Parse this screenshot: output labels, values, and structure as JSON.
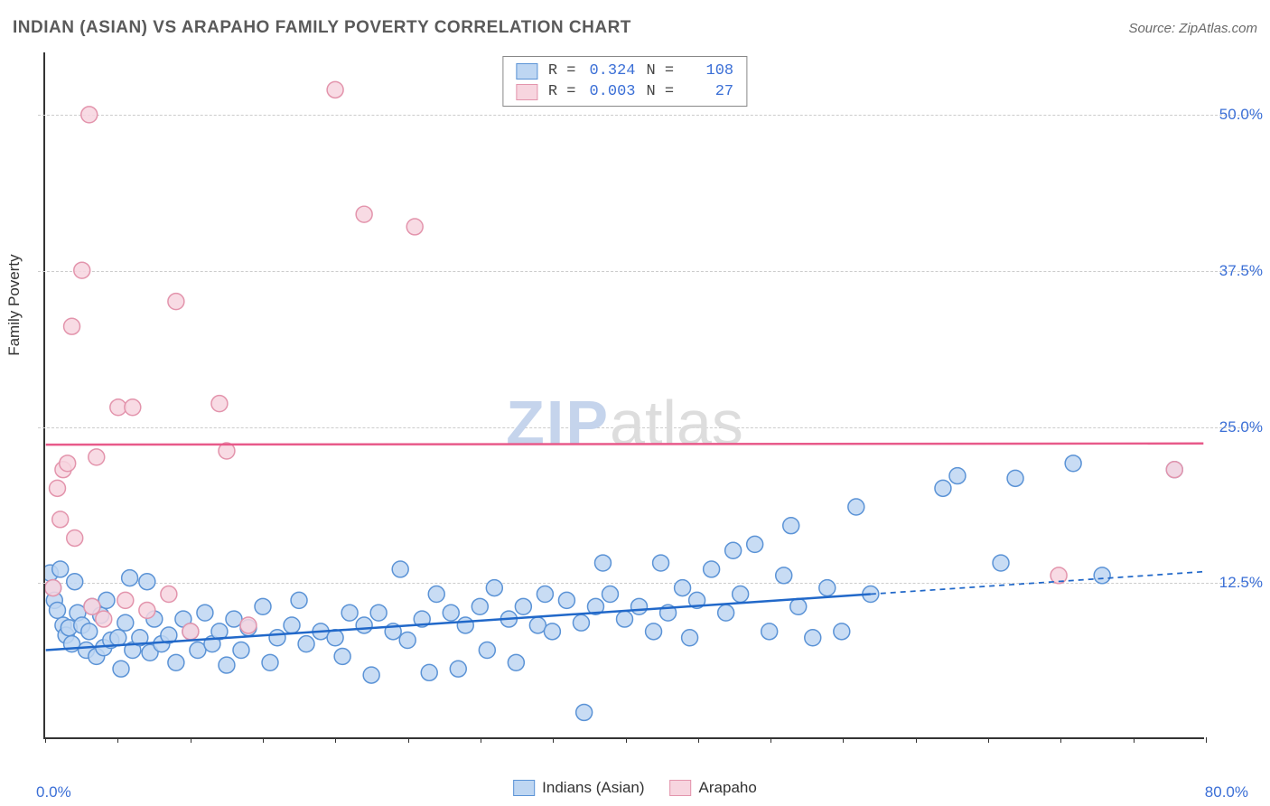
{
  "title": "INDIAN (ASIAN) VS ARAPAHO FAMILY POVERTY CORRELATION CHART",
  "source_label": "Source: ZipAtlas.com",
  "watermark": {
    "part1": "ZIP",
    "part2": "atlas"
  },
  "y_axis_title": "Family Poverty",
  "chart": {
    "type": "scatter-correlation",
    "background_color": "#ffffff",
    "grid_color": "#cccccc",
    "axis_color": "#333333",
    "label_color": "#3b6fd6",
    "xlim": [
      0,
      80
    ],
    "ylim": [
      0,
      55
    ],
    "x_min_label": "0.0%",
    "x_max_label": "80.0%",
    "x_ticks": [
      0,
      5,
      10,
      15,
      20,
      25,
      30,
      35,
      40,
      45,
      50,
      55,
      60,
      65,
      70,
      75,
      80
    ],
    "y_gridlines": [
      {
        "value": 12.5,
        "label": "12.5%"
      },
      {
        "value": 25.0,
        "label": "25.0%"
      },
      {
        "value": 37.5,
        "label": "37.5%"
      },
      {
        "value": 50.0,
        "label": "50.0%"
      }
    ],
    "series": [
      {
        "name": "Indians (Asian)",
        "key": "indians",
        "marker_fill": "#bed6f2",
        "marker_stroke": "#5b93d6",
        "marker_radius": 9,
        "line_color": "#2168c9",
        "line_width": 2.5,
        "R": "0.324",
        "N": "108",
        "regression": {
          "x1": 0,
          "y1": 7.0,
          "x2_solid": 57,
          "y2_solid": 11.5,
          "x2_dash": 80,
          "y2_dash": 13.3
        },
        "points": [
          [
            0.3,
            13.2
          ],
          [
            0.5,
            12.0
          ],
          [
            0.6,
            11.0
          ],
          [
            0.8,
            10.2
          ],
          [
            1.0,
            13.5
          ],
          [
            1.2,
            9.0
          ],
          [
            1.4,
            8.2
          ],
          [
            1.6,
            8.8
          ],
          [
            1.8,
            7.5
          ],
          [
            2.0,
            12.5
          ],
          [
            2.2,
            10.0
          ],
          [
            2.5,
            9.0
          ],
          [
            2.8,
            7.0
          ],
          [
            3.0,
            8.5
          ],
          [
            3.2,
            10.5
          ],
          [
            3.5,
            6.5
          ],
          [
            3.8,
            9.8
          ],
          [
            4.0,
            7.2
          ],
          [
            4.2,
            11.0
          ],
          [
            4.5,
            7.8
          ],
          [
            5.0,
            8.0
          ],
          [
            5.2,
            5.5
          ],
          [
            5.5,
            9.2
          ],
          [
            5.8,
            12.8
          ],
          [
            6.0,
            7.0
          ],
          [
            6.5,
            8.0
          ],
          [
            7.0,
            12.5
          ],
          [
            7.2,
            6.8
          ],
          [
            7.5,
            9.5
          ],
          [
            8.0,
            7.5
          ],
          [
            8.5,
            8.2
          ],
          [
            9.0,
            6.0
          ],
          [
            9.5,
            9.5
          ],
          [
            10.0,
            8.5
          ],
          [
            10.5,
            7.0
          ],
          [
            11.0,
            10.0
          ],
          [
            11.5,
            7.5
          ],
          [
            12.0,
            8.5
          ],
          [
            12.5,
            5.8
          ],
          [
            13.0,
            9.5
          ],
          [
            13.5,
            7.0
          ],
          [
            14.0,
            8.8
          ],
          [
            15.0,
            10.5
          ],
          [
            15.5,
            6.0
          ],
          [
            16.0,
            8.0
          ],
          [
            17.0,
            9.0
          ],
          [
            17.5,
            11.0
          ],
          [
            18.0,
            7.5
          ],
          [
            19.0,
            8.5
          ],
          [
            20.0,
            8.0
          ],
          [
            20.5,
            6.5
          ],
          [
            21.0,
            10.0
          ],
          [
            22.0,
            9.0
          ],
          [
            22.5,
            5.0
          ],
          [
            23.0,
            10.0
          ],
          [
            24.0,
            8.5
          ],
          [
            24.5,
            13.5
          ],
          [
            25.0,
            7.8
          ],
          [
            26.0,
            9.5
          ],
          [
            26.5,
            5.2
          ],
          [
            27.0,
            11.5
          ],
          [
            28.0,
            10.0
          ],
          [
            28.5,
            5.5
          ],
          [
            29.0,
            9.0
          ],
          [
            30.0,
            10.5
          ],
          [
            30.5,
            7.0
          ],
          [
            31.0,
            12.0
          ],
          [
            32.0,
            9.5
          ],
          [
            32.5,
            6.0
          ],
          [
            33.0,
            10.5
          ],
          [
            34.0,
            9.0
          ],
          [
            34.5,
            11.5
          ],
          [
            35.0,
            8.5
          ],
          [
            36.0,
            11.0
          ],
          [
            37.0,
            9.2
          ],
          [
            37.2,
            2.0
          ],
          [
            38.0,
            10.5
          ],
          [
            38.5,
            14.0
          ],
          [
            39.0,
            11.5
          ],
          [
            40.0,
            9.5
          ],
          [
            41.0,
            10.5
          ],
          [
            42.0,
            8.5
          ],
          [
            42.5,
            14.0
          ],
          [
            43.0,
            10.0
          ],
          [
            44.0,
            12.0
          ],
          [
            44.5,
            8.0
          ],
          [
            45.0,
            11.0
          ],
          [
            46.0,
            13.5
          ],
          [
            47.0,
            10.0
          ],
          [
            47.5,
            15.0
          ],
          [
            48.0,
            11.5
          ],
          [
            49.0,
            15.5
          ],
          [
            50.0,
            8.5
          ],
          [
            51.0,
            13.0
          ],
          [
            51.5,
            17.0
          ],
          [
            52.0,
            10.5
          ],
          [
            53.0,
            8.0
          ],
          [
            54.0,
            12.0
          ],
          [
            55.0,
            8.5
          ],
          [
            56.0,
            18.5
          ],
          [
            57.0,
            11.5
          ],
          [
            62.0,
            20.0
          ],
          [
            63.0,
            21.0
          ],
          [
            66.0,
            14.0
          ],
          [
            67.0,
            20.8
          ],
          [
            71.0,
            22.0
          ],
          [
            73.0,
            13.0
          ],
          [
            78.0,
            21.5
          ]
        ]
      },
      {
        "name": "Arapaho",
        "key": "arapaho",
        "marker_fill": "#f7d5df",
        "marker_stroke": "#e394ac",
        "marker_radius": 9,
        "line_color": "#e85a8a",
        "line_width": 2.5,
        "R": "0.003",
        "N": "27",
        "regression": {
          "x1": 0,
          "y1": 23.5,
          "x2_solid": 80,
          "y2_solid": 23.6,
          "x2_dash": 80,
          "y2_dash": 23.6
        },
        "points": [
          [
            0.5,
            12.0
          ],
          [
            0.8,
            20.0
          ],
          [
            1.0,
            17.5
          ],
          [
            1.2,
            21.5
          ],
          [
            1.5,
            22.0
          ],
          [
            1.8,
            33.0
          ],
          [
            2.0,
            16.0
          ],
          [
            2.5,
            37.5
          ],
          [
            3.0,
            50.0
          ],
          [
            3.2,
            10.5
          ],
          [
            3.5,
            22.5
          ],
          [
            4.0,
            9.5
          ],
          [
            5.0,
            26.5
          ],
          [
            5.5,
            11.0
          ],
          [
            6.0,
            26.5
          ],
          [
            7.0,
            10.2
          ],
          [
            8.5,
            11.5
          ],
          [
            9.0,
            35.0
          ],
          [
            10.0,
            8.5
          ],
          [
            12.0,
            26.8
          ],
          [
            12.5,
            23.0
          ],
          [
            14.0,
            9.0
          ],
          [
            20.0,
            52.0
          ],
          [
            22.0,
            42.0
          ],
          [
            25.5,
            41.0
          ],
          [
            70.0,
            13.0
          ],
          [
            78.0,
            21.5
          ]
        ]
      }
    ],
    "legend_bottom": [
      {
        "label": "Indians (Asian)",
        "fill": "#bed6f2",
        "stroke": "#5b93d6"
      },
      {
        "label": "Arapaho",
        "fill": "#f7d5df",
        "stroke": "#e394ac"
      }
    ]
  }
}
